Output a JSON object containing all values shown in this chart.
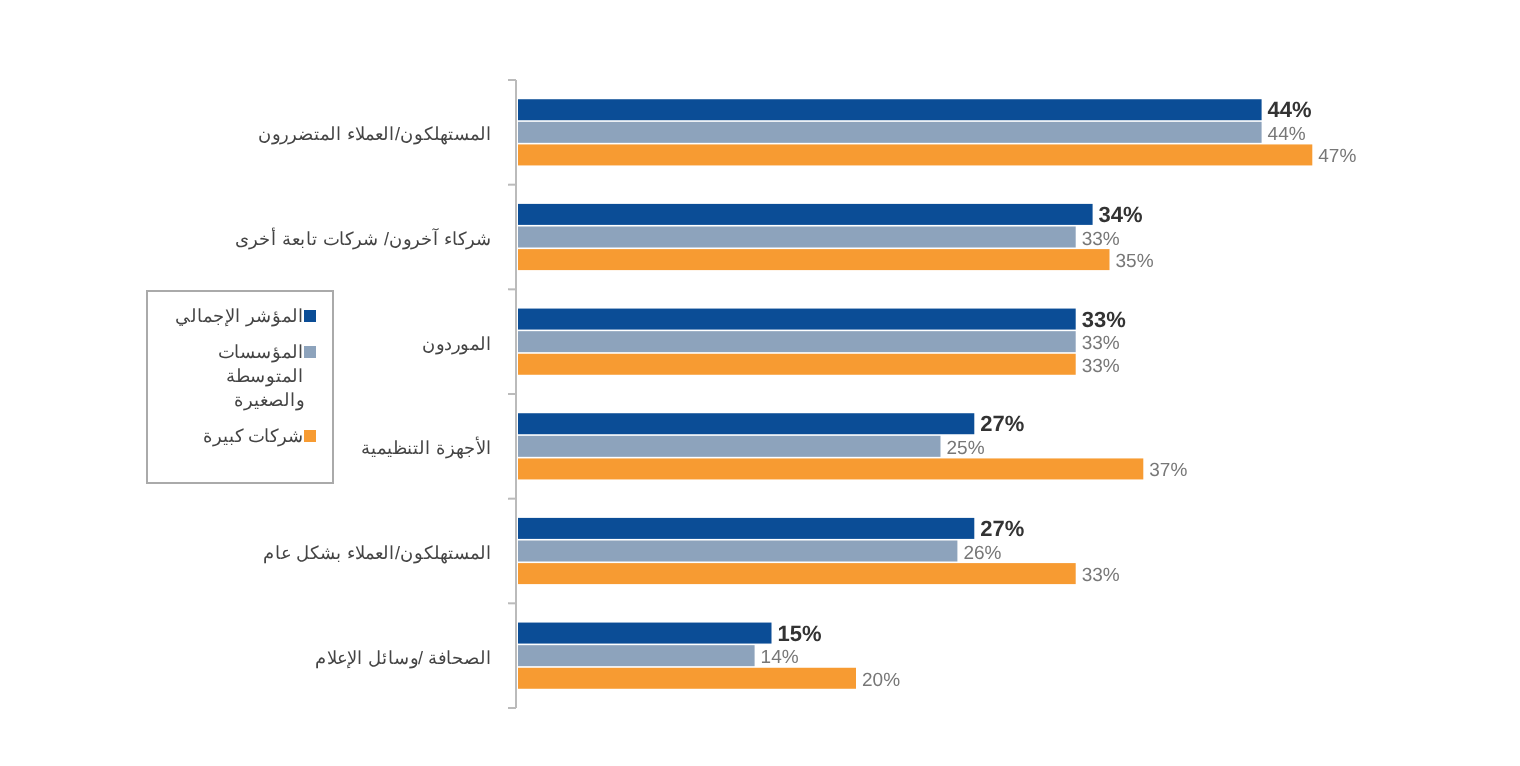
{
  "chart_data": {
    "type": "bar",
    "orientation": "horizontal",
    "relative": false,
    "legend": "left",
    "categories": [
      "المستهلكون/العملاء المتضررون",
      "شركاء آخرون/ شركات تابعة أخرى",
      "الموردون",
      "الأجهزة التنظيمية",
      "المستهلكون/العملاء بشكل عام",
      "الصحافة /وسائل الإعلام"
    ],
    "series": [
      {
        "name": "المؤشر الإجمالي",
        "color": "#0b4d96",
        "values": [
          44,
          34,
          33,
          27,
          27,
          15
        ],
        "value_labels": [
          "44%",
          "34%",
          "33%",
          "27%",
          "27%",
          "15%"
        ]
      },
      {
        "name": "المؤسسات المتوسطة والصغيرة",
        "color": "#8da3bc",
        "values": [
          44,
          33,
          33,
          25,
          26,
          14
        ],
        "value_labels": [
          "44%",
          "33%",
          "33%",
          "25%",
          "26%",
          "14%"
        ]
      },
      {
        "name": "شركات كبيرة",
        "color": "#f79b32",
        "values": [
          47,
          35,
          33,
          37,
          33,
          20
        ],
        "value_labels": [
          "47%",
          "35%",
          "33%",
          "37%",
          "33%",
          "20%"
        ]
      }
    ]
  }
}
